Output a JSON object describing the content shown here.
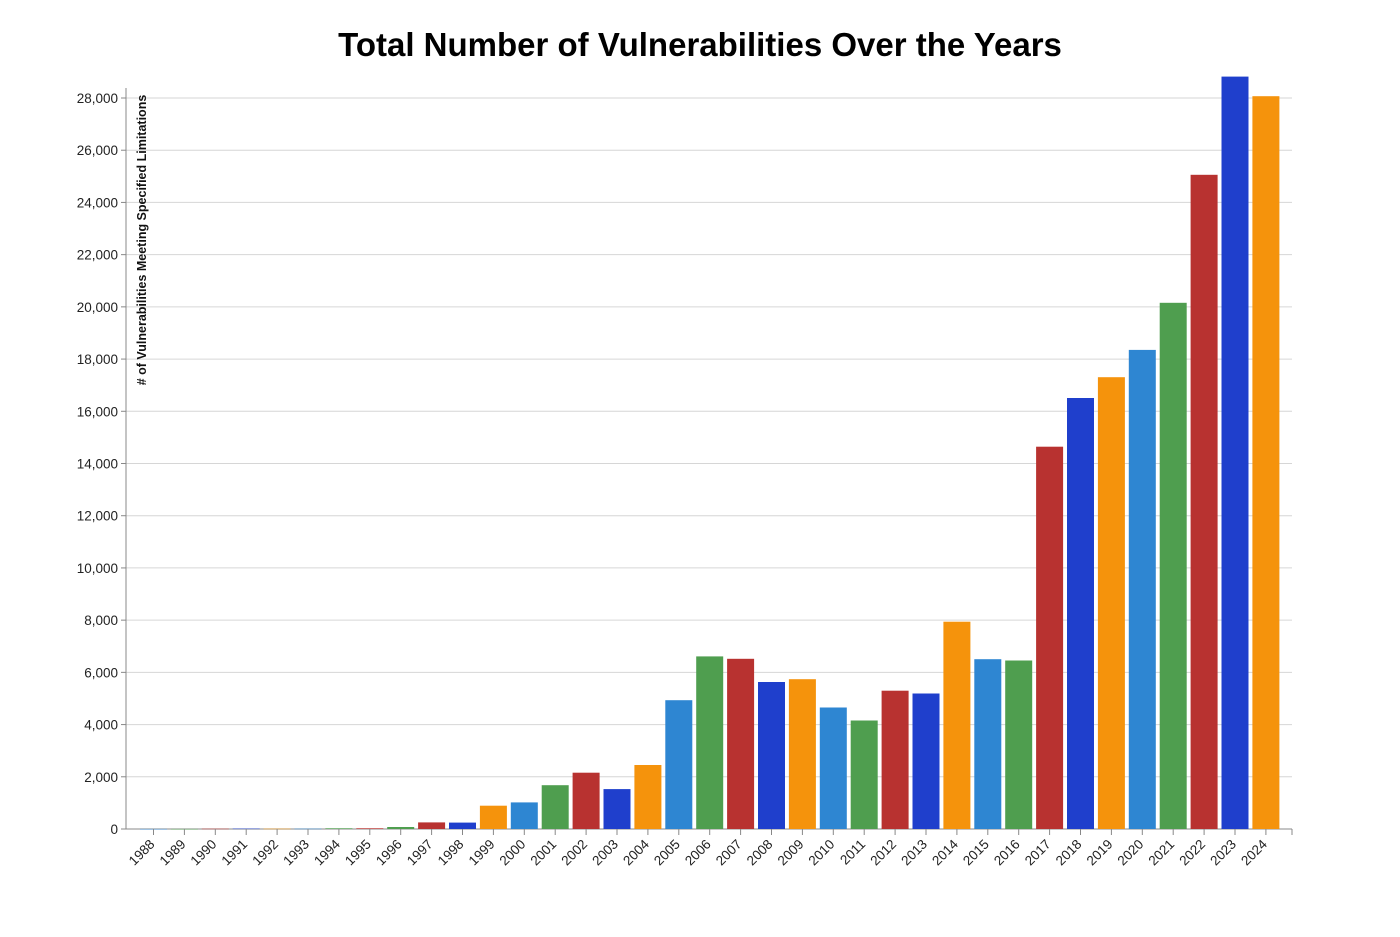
{
  "chart_data": {
    "type": "bar",
    "title": "Total Number of Vulnerabilities Over the Years",
    "xlabel": "",
    "ylabel": "# of Vulnerabilities Meeting Specified Limitations",
    "ylim": [
      0,
      28000
    ],
    "yticks": [
      0,
      2000,
      4000,
      6000,
      8000,
      10000,
      12000,
      14000,
      16000,
      18000,
      20000,
      22000,
      24000,
      26000,
      28000
    ],
    "ytick_labels": [
      "0",
      "2,000",
      "4,000",
      "6,000",
      "8,000",
      "10,000",
      "12,000",
      "14,000",
      "16,000",
      "18,000",
      "20,000",
      "22,000",
      "24,000",
      "26,000",
      "28,000"
    ],
    "grid": true,
    "categories": [
      "1988",
      "1989",
      "1990",
      "1991",
      "1992",
      "1993",
      "1994",
      "1995",
      "1996",
      "1997",
      "1998",
      "1999",
      "2000",
      "2001",
      "2002",
      "2003",
      "2004",
      "2005",
      "2006",
      "2007",
      "2008",
      "2009",
      "2010",
      "2011",
      "2012",
      "2013",
      "2014",
      "2015",
      "2016",
      "2017",
      "2018",
      "2019",
      "2020",
      "2021",
      "2022",
      "2023",
      "2024"
    ],
    "values": [
      2,
      3,
      11,
      15,
      13,
      13,
      25,
      25,
      75,
      252,
      246,
      894,
      1020,
      1677,
      2156,
      1527,
      2451,
      4935,
      6610,
      6520,
      5632,
      5736,
      4652,
      4155,
      5297,
      5191,
      7939,
      6504,
      6454,
      14643,
      16509,
      17305,
      18350,
      20155,
      25059,
      28818,
      28070
    ],
    "colors": [
      "#2e86d2",
      "#4f9e4f",
      "#b83230",
      "#1f3fcc",
      "#f5930c",
      "#2e86d2",
      "#4f9e4f",
      "#b83230",
      "#4f9e4f",
      "#b83230",
      "#1f3fcc",
      "#f5930c",
      "#2e86d2",
      "#4f9e4f",
      "#b83230",
      "#1f3fcc",
      "#f5930c",
      "#2e86d2",
      "#4f9e4f",
      "#b83230",
      "#1f3fcc",
      "#f5930c",
      "#2e86d2",
      "#4f9e4f",
      "#b83230",
      "#1f3fcc",
      "#f5930c",
      "#2e86d2",
      "#4f9e4f",
      "#b83230",
      "#1f3fcc",
      "#f5930c",
      "#2e86d2",
      "#4f9e4f",
      "#b83230",
      "#1f3fcc",
      "#f5930c"
    ]
  }
}
